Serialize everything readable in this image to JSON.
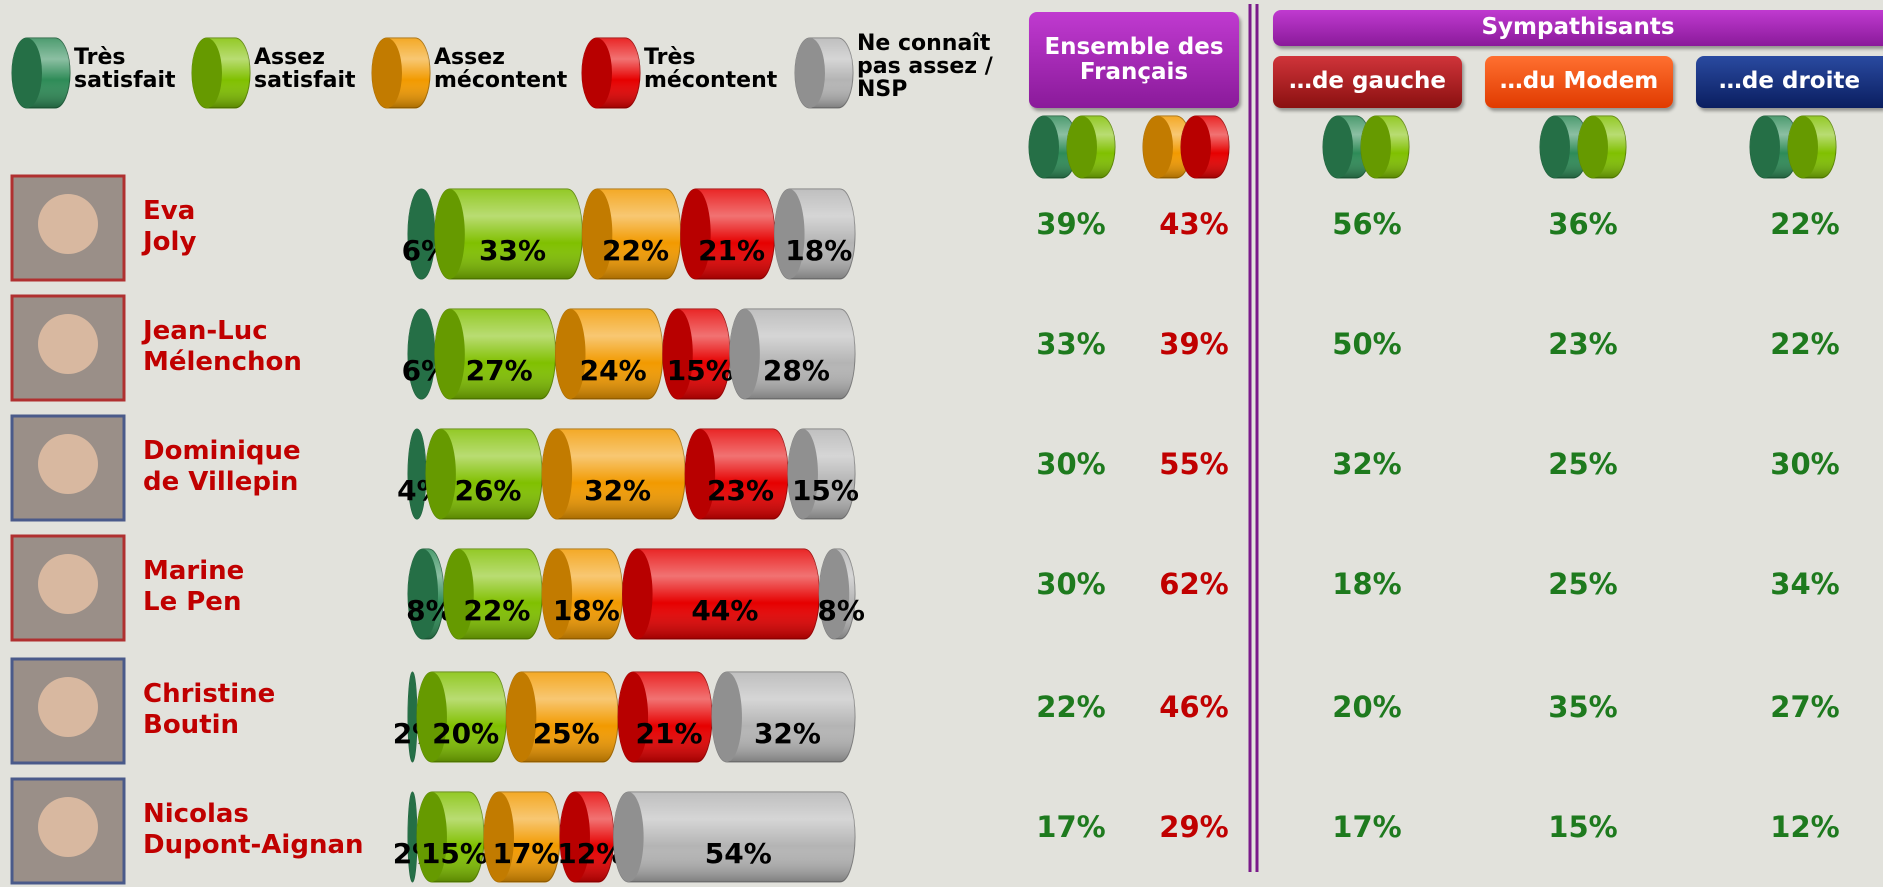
{
  "chart_data": {
    "type": "bar",
    "categories": [
      "Eva\nJoly",
      "Jean-Luc\nMélenchon",
      "Dominique\nde Villepin",
      "Marine\n Le Pen",
      "Christine\nBoutin",
      "Nicolas\nDupont-Aignan"
    ],
    "series": [
      {
        "name": "Très\nsatisfait",
        "color": "#2e8b57",
        "values": [
          6,
          6,
          4,
          8,
          2,
          2
        ],
        "value_labels": [
          "6%",
          "6%",
          "4%",
          "8%",
          "2%",
          "2%"
        ]
      },
      {
        "name": "Assez\nsatisfait",
        "color": "#80c000",
        "values": [
          33,
          27,
          26,
          22,
          20,
          15
        ],
        "value_labels": [
          "33%",
          "27%",
          "26%",
          "22%",
          "20%",
          "15%"
        ]
      },
      {
        "name": "Assez\nmécontent",
        "color": "#f29a00",
        "values": [
          22,
          24,
          32,
          18,
          25,
          17
        ],
        "value_labels": [
          "22%",
          "24%",
          "32%",
          "18%",
          "25%",
          "17%"
        ]
      },
      {
        "name": "Très\nmécontent",
        "color": "#e60000",
        "values": [
          21,
          15,
          23,
          44,
          21,
          12
        ],
        "value_labels": [
          "21%",
          "15%",
          "23%",
          "44%",
          "21%",
          "12%"
        ]
      },
      {
        "name": "Ne connaît\npas assez /\n NSP",
        "color": "#b4b4b4",
        "values": [
          18,
          28,
          15,
          8,
          32,
          54
        ],
        "value_labels": [
          "18%",
          "28%",
          "15%",
          "8%",
          "32%",
          "54%"
        ]
      }
    ],
    "xlim": [
      0,
      100
    ]
  },
  "table": {
    "headers": [
      "Ensemble des\nFrançais",
      "Sympathisants",
      "…de gauche",
      "…du Modem",
      "…de droite"
    ],
    "rows": [
      [
        "39%",
        "43%",
        "56%",
        "36%",
        "22%"
      ],
      [
        "33%",
        "39%",
        "50%",
        "23%",
        "22%"
      ],
      [
        "30%",
        "55%",
        "32%",
        "25%",
        "30%"
      ],
      [
        "30%",
        "62%",
        "18%",
        "25%",
        "34%"
      ],
      [
        "22%",
        "46%",
        "20%",
        "35%",
        "27%"
      ],
      [
        "17%",
        "29%",
        "17%",
        "15%",
        "12%"
      ]
    ]
  }
}
